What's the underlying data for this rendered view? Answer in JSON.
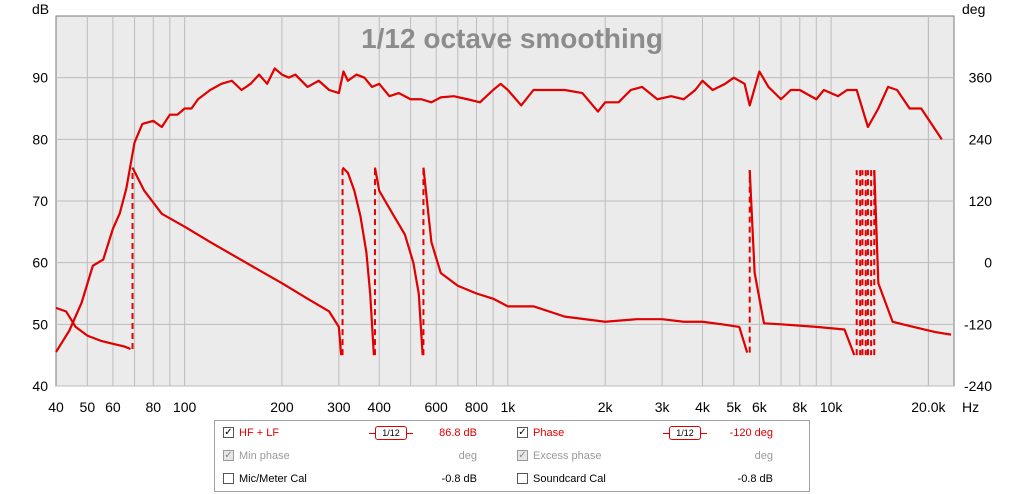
{
  "chart_data": {
    "type": "line",
    "title": "1/12 octave smoothing",
    "xlabel": "Hz",
    "ylabel_left": "dB",
    "ylabel_right": "deg",
    "xscale": "log",
    "xlim": [
      40,
      24000
    ],
    "ylim_left": [
      40,
      100
    ],
    "ylim_right": [
      -240,
      480
    ],
    "x_ticks": [
      {
        "v": 40,
        "label": "40"
      },
      {
        "v": 50,
        "label": "50"
      },
      {
        "v": 60,
        "label": "60"
      },
      {
        "v": 80,
        "label": "80"
      },
      {
        "v": 100,
        "label": "100"
      },
      {
        "v": 200,
        "label": "200"
      },
      {
        "v": 300,
        "label": "300"
      },
      {
        "v": 400,
        "label": "400"
      },
      {
        "v": 600,
        "label": "600"
      },
      {
        "v": 800,
        "label": "800"
      },
      {
        "v": 1000,
        "label": "1k"
      },
      {
        "v": 2000,
        "label": "2k"
      },
      {
        "v": 3000,
        "label": "3k"
      },
      {
        "v": 4000,
        "label": "4k"
      },
      {
        "v": 5000,
        "label": "5k"
      },
      {
        "v": 6000,
        "label": "6k"
      },
      {
        "v": 8000,
        "label": "8k"
      },
      {
        "v": 10000,
        "label": "10k"
      },
      {
        "v": 20000,
        "label": "20.0k"
      }
    ],
    "y_ticks_left": [
      {
        "v": 40,
        "label": "40"
      },
      {
        "v": 50,
        "label": "50"
      },
      {
        "v": 60,
        "label": "60"
      },
      {
        "v": 70,
        "label": "70"
      },
      {
        "v": 80,
        "label": "80"
      },
      {
        "v": 90,
        "label": "90"
      }
    ],
    "y_ticks_right": [
      {
        "v": -240,
        "label": "-240"
      },
      {
        "v": -120,
        "label": "-120"
      },
      {
        "v": 0,
        "label": "0"
      },
      {
        "v": 120,
        "label": "120"
      },
      {
        "v": 240,
        "label": "240"
      },
      {
        "v": 360,
        "label": "360"
      }
    ],
    "grid": true,
    "series": [
      {
        "name": "HF + LF",
        "axis": "left",
        "color": "#e00000",
        "points": [
          [
            40,
            45.5
          ],
          [
            44,
            49
          ],
          [
            48,
            53.5
          ],
          [
            52,
            59.5
          ],
          [
            56,
            60.5
          ],
          [
            60,
            65.5
          ],
          [
            63,
            68
          ],
          [
            66,
            72
          ],
          [
            70,
            79.5
          ],
          [
            74,
            82.5
          ],
          [
            80,
            83
          ],
          [
            85,
            82
          ],
          [
            90,
            84
          ],
          [
            95,
            84
          ],
          [
            100,
            85
          ],
          [
            105,
            85
          ],
          [
            110,
            86.5
          ],
          [
            120,
            88
          ],
          [
            130,
            89
          ],
          [
            140,
            89.5
          ],
          [
            150,
            88
          ],
          [
            160,
            89
          ],
          [
            170,
            90.5
          ],
          [
            180,
            89
          ],
          [
            190,
            91.5
          ],
          [
            200,
            90.5
          ],
          [
            210,
            90
          ],
          [
            220,
            90.5
          ],
          [
            240,
            88.5
          ],
          [
            260,
            89.5
          ],
          [
            280,
            88
          ],
          [
            300,
            87.5
          ],
          [
            310,
            91
          ],
          [
            320,
            89.5
          ],
          [
            340,
            90.5
          ],
          [
            360,
            90
          ],
          [
            380,
            88.5
          ],
          [
            400,
            89
          ],
          [
            430,
            87
          ],
          [
            460,
            87.5
          ],
          [
            500,
            86.5
          ],
          [
            540,
            86.5
          ],
          [
            580,
            86
          ],
          [
            620,
            86.8
          ],
          [
            680,
            87
          ],
          [
            750,
            86.5
          ],
          [
            820,
            86
          ],
          [
            900,
            88
          ],
          [
            950,
            89
          ],
          [
            1000,
            88
          ],
          [
            1100,
            85.5
          ],
          [
            1200,
            88
          ],
          [
            1350,
            88
          ],
          [
            1500,
            88
          ],
          [
            1700,
            87.5
          ],
          [
            1900,
            84.5
          ],
          [
            2000,
            86
          ],
          [
            2200,
            86
          ],
          [
            2400,
            88
          ],
          [
            2600,
            88.5
          ],
          [
            2900,
            86.5
          ],
          [
            3200,
            87
          ],
          [
            3500,
            86.5
          ],
          [
            3800,
            88
          ],
          [
            4000,
            89.5
          ],
          [
            4300,
            88
          ],
          [
            4700,
            89
          ],
          [
            5000,
            90
          ],
          [
            5400,
            89
          ],
          [
            5600,
            85.5
          ],
          [
            6000,
            91
          ],
          [
            6400,
            88.5
          ],
          [
            7000,
            86.5
          ],
          [
            7500,
            88
          ],
          [
            8000,
            88
          ],
          [
            9000,
            86.5
          ],
          [
            9500,
            88
          ],
          [
            10500,
            87
          ],
          [
            11200,
            88
          ],
          [
            12000,
            88
          ],
          [
            13000,
            82
          ],
          [
            14000,
            85
          ],
          [
            15000,
            88.5
          ],
          [
            16000,
            88
          ],
          [
            17500,
            85
          ],
          [
            19000,
            85
          ],
          [
            22000,
            80
          ]
        ]
      },
      {
        "name": "Phase",
        "axis": "right",
        "color": "#e00000",
        "points": [
          [
            40,
            -88
          ],
          [
            43,
            -95
          ],
          [
            46,
            -125
          ],
          [
            50,
            -142
          ],
          [
            55,
            -152
          ],
          [
            60,
            -158
          ],
          [
            65,
            -163
          ],
          [
            68,
            -168
          ],
          [
            69,
            185
          ],
          [
            75,
            140
          ],
          [
            85,
            95
          ],
          [
            100,
            70
          ],
          [
            120,
            40
          ],
          [
            150,
            5
          ],
          [
            200,
            -40
          ],
          [
            240,
            -70
          ],
          [
            280,
            -95
          ],
          [
            300,
            -125
          ],
          [
            305,
            -180
          ],
          [
            308,
            185
          ],
          [
            320,
            175
          ],
          [
            335,
            140
          ],
          [
            350,
            90
          ],
          [
            365,
            20
          ],
          [
            375,
            -60
          ],
          [
            385,
            -180
          ],
          [
            388,
            185
          ],
          [
            400,
            140
          ],
          [
            440,
            95
          ],
          [
            480,
            55
          ],
          [
            510,
            0
          ],
          [
            530,
            -60
          ],
          [
            545,
            -180
          ],
          [
            548,
            185
          ],
          [
            580,
            40
          ],
          [
            620,
            -20
          ],
          [
            700,
            -45
          ],
          [
            800,
            -60
          ],
          [
            900,
            -70
          ],
          [
            1000,
            -85
          ],
          [
            1200,
            -85
          ],
          [
            1500,
            -105
          ],
          [
            2000,
            -115
          ],
          [
            2500,
            -110
          ],
          [
            3000,
            -110
          ],
          [
            3500,
            -115
          ],
          [
            4000,
            -115
          ],
          [
            4600,
            -120
          ],
          [
            5200,
            -125
          ],
          [
            5500,
            -175
          ],
          [
            5600,
            180
          ],
          [
            5800,
            -20
          ],
          [
            6200,
            -118
          ],
          [
            7000,
            -120
          ],
          [
            9000,
            -125
          ],
          [
            11000,
            -130
          ],
          [
            11800,
            -180
          ],
          [
            12000,
            180
          ],
          [
            12300,
            -180
          ],
          [
            12500,
            180
          ],
          [
            12800,
            -180
          ],
          [
            13000,
            180
          ],
          [
            13300,
            -180
          ],
          [
            13600,
            180
          ],
          [
            14000,
            -40
          ],
          [
            15500,
            -115
          ],
          [
            18000,
            -125
          ],
          [
            21000,
            -135
          ],
          [
            23500,
            -140
          ]
        ]
      }
    ]
  },
  "legend": {
    "hf_lf": {
      "label": "HF + LF",
      "smoothing": "1/12",
      "value": "86.8 dB",
      "checked": "✓"
    },
    "phase": {
      "label": "Phase",
      "smoothing": "1/12",
      "value": "-120 deg",
      "checked": "✓"
    },
    "min_phase": {
      "label": "Min phase",
      "value": "deg",
      "checked": "✓"
    },
    "excess_phase": {
      "label": "Excess phase",
      "value": "deg",
      "checked": "✓"
    },
    "mic_cal": {
      "label": "Mic/Meter Cal",
      "value": "-0.8 dB"
    },
    "soundcard_cal": {
      "label": "Soundcard Cal",
      "value": "-0.8 dB"
    }
  }
}
